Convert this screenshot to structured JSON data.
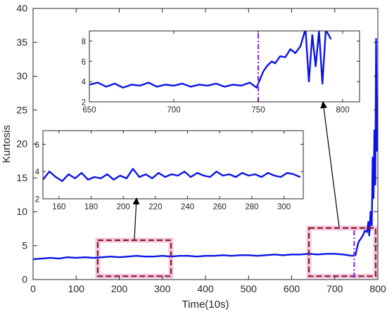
{
  "chart_data": [
    {
      "id": "main",
      "type": "line",
      "xlabel": "Time(10s)",
      "ylabel": "Kurtosis",
      "xlim": [
        0,
        800
      ],
      "ylim": [
        0,
        40
      ],
      "xticks": [
        0,
        100,
        200,
        300,
        400,
        500,
        600,
        700,
        800
      ],
      "yticks": [
        0,
        5,
        10,
        15,
        20,
        25,
        30,
        35,
        40
      ],
      "grid": false,
      "line_color": "#0a14e6",
      "series": [
        {
          "x": [
            0,
            20,
            40,
            60,
            80,
            100,
            120,
            140,
            160,
            180,
            200,
            220,
            240,
            260,
            280,
            300,
            320,
            340,
            360,
            380,
            400,
            420,
            440,
            460,
            480,
            500,
            520,
            540,
            560,
            580,
            600,
            620,
            640,
            660,
            680,
            700,
            720,
            740,
            748,
            750,
            755,
            760,
            765,
            770,
            775,
            778,
            780,
            783,
            786,
            788,
            790,
            792,
            794,
            796,
            798,
            800
          ],
          "values": [
            3.0,
            3.1,
            3.2,
            3.1,
            3.3,
            3.2,
            3.3,
            3.2,
            3.3,
            3.4,
            3.3,
            3.4,
            3.5,
            3.4,
            3.4,
            3.5,
            3.4,
            3.5,
            3.5,
            3.4,
            3.5,
            3.5,
            3.6,
            3.5,
            3.6,
            3.6,
            3.5,
            3.6,
            3.7,
            3.6,
            3.7,
            3.7,
            3.8,
            3.7,
            3.8,
            3.8,
            3.7,
            3.5,
            3.6,
            4.2,
            5.5,
            6.0,
            6.5,
            7.2,
            7.0,
            8.5,
            6.5,
            10.0,
            8.0,
            18.0,
            12.0,
            22.0,
            14.0,
            35.5,
            19.0,
            22.0
          ]
        }
      ],
      "highlight_boxes": [
        {
          "x": [
            150,
            320
          ],
          "y": [
            0.5,
            5.8
          ],
          "color": "#8b1a1a"
        },
        {
          "x": [
            640,
            795
          ],
          "y": [
            0.5,
            7.6
          ],
          "color": "#8b1a1a"
        }
      ],
      "vertical_marker": {
        "x": 745,
        "y": [
          0.3,
          7.3
        ],
        "color": "#8a2be2"
      }
    },
    {
      "id": "inset-top",
      "type": "line",
      "xlim": [
        650,
        810
      ],
      "ylim": [
        2,
        9
      ],
      "xticks": [
        650,
        700,
        750,
        800
      ],
      "yticks": [
        2,
        4,
        6,
        8
      ],
      "line_color": "#0a14e6",
      "series": [
        {
          "x": [
            650,
            655,
            660,
            665,
            670,
            675,
            680,
            685,
            690,
            695,
            700,
            705,
            710,
            715,
            720,
            725,
            730,
            735,
            740,
            745,
            749,
            751,
            753,
            755,
            758,
            760,
            763,
            766,
            769,
            772,
            775,
            778,
            780,
            782,
            784,
            786,
            788,
            790,
            793
          ],
          "values": [
            3.7,
            3.9,
            3.5,
            3.8,
            3.4,
            3.7,
            3.6,
            3.9,
            3.5,
            3.7,
            3.6,
            3.8,
            3.5,
            3.7,
            3.6,
            3.8,
            3.5,
            3.7,
            3.6,
            3.9,
            3.4,
            4.2,
            5.0,
            5.5,
            6.0,
            5.8,
            6.5,
            6.4,
            7.2,
            6.8,
            7.5,
            9.2,
            4.0,
            8.6,
            5.5,
            9.0,
            3.8,
            9.1,
            8.2
          ]
        }
      ],
      "vertical_marker": {
        "x": 750,
        "color": "#8a2be2"
      }
    },
    {
      "id": "inset-middle",
      "type": "line",
      "xlim": [
        150,
        312
      ],
      "ylim": [
        2,
        7
      ],
      "xticks": [
        160,
        180,
        200,
        220,
        240,
        260,
        280,
        300
      ],
      "yticks": [
        2,
        4,
        6
      ],
      "line_color": "#0a14e6",
      "series": [
        {
          "x": [
            150,
            154,
            158,
            162,
            166,
            170,
            174,
            178,
            182,
            186,
            190,
            194,
            198,
            202,
            206,
            210,
            214,
            218,
            222,
            226,
            230,
            234,
            238,
            242,
            246,
            250,
            254,
            258,
            262,
            266,
            270,
            274,
            278,
            282,
            286,
            290,
            294,
            298,
            302,
            306,
            310
          ],
          "values": [
            3.4,
            4.0,
            3.6,
            3.3,
            3.8,
            3.5,
            3.9,
            3.4,
            3.6,
            3.5,
            3.8,
            3.4,
            3.7,
            3.5,
            4.2,
            3.6,
            3.8,
            3.5,
            3.9,
            3.6,
            3.8,
            3.7,
            4.0,
            3.6,
            3.9,
            3.7,
            3.6,
            4.0,
            3.7,
            3.8,
            3.6,
            3.9,
            3.7,
            3.8,
            3.6,
            3.9,
            3.7,
            3.6,
            3.9,
            3.8,
            3.6
          ]
        }
      ]
    }
  ]
}
